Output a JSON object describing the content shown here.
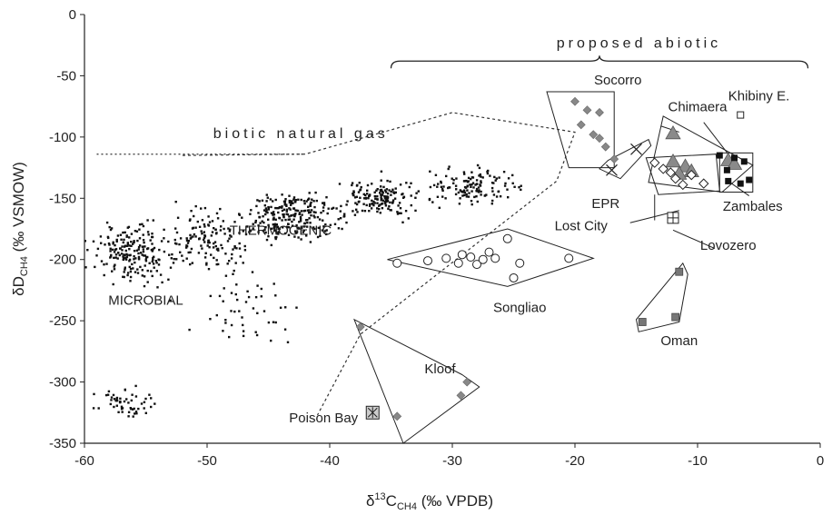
{
  "chart_data": {
    "type": "scatter",
    "title": "",
    "xlabel": "δ13C (‰ VPDB)",
    "ylabel": "δD (‰ VSMOW)",
    "xlabel_parts": {
      "delta": "δ",
      "mass": "13",
      "elem": "C",
      "sub": "CH4",
      "unit": "(‰ VPDB)"
    },
    "ylabel_parts": {
      "delta": "δ",
      "elem": "D",
      "sub": "CH4",
      "unit": "(‰ VSMOW)"
    },
    "xlim": [
      -60,
      0
    ],
    "ylim": [
      -350,
      0
    ],
    "xticks": [
      -60,
      -50,
      -40,
      -30,
      -20,
      -10,
      0
    ],
    "yticks": [
      0,
      -50,
      -100,
      -150,
      -200,
      -250,
      -300,
      -350
    ],
    "grid": false,
    "region_labels": [
      {
        "text": "biotic natural gas",
        "x": -49.5,
        "y": -101,
        "style": "spaced"
      },
      {
        "text": "proposed abiotic",
        "x": -21.5,
        "y": -27,
        "style": "spaced"
      },
      {
        "text": "THERMOGENIC",
        "x": -44,
        "y": -180
      },
      {
        "text": "MICROBIAL",
        "x": -55,
        "y": -237
      },
      {
        "text": "Socorro",
        "x": -16.5,
        "y": -57
      },
      {
        "text": "Chimaera",
        "x": -10,
        "y": -79
      },
      {
        "text": "Khibiny E.",
        "x": -5,
        "y": -70
      },
      {
        "text": "EPR",
        "x": -17.5,
        "y": -158
      },
      {
        "text": "Lost City",
        "x": -19.5,
        "y": -176
      },
      {
        "text": "Zambales",
        "x": -5.5,
        "y": -160
      },
      {
        "text": "Lovozero",
        "x": -7.5,
        "y": -192
      },
      {
        "text": "Songliao",
        "x": -24.5,
        "y": -243
      },
      {
        "text": "Oman",
        "x": -11.5,
        "y": -270
      },
      {
        "text": "Kloof",
        "x": -31,
        "y": -293
      },
      {
        "text": "Poison Bay",
        "x": -40.5,
        "y": -333
      }
    ],
    "series": [
      {
        "name": "Socorro",
        "marker": "diamond-gray",
        "points": [
          [
            -20,
            -71
          ],
          [
            -19,
            -78
          ],
          [
            -18,
            -80
          ],
          [
            -19.5,
            -90
          ],
          [
            -18.5,
            -98
          ],
          [
            -18,
            -101
          ],
          [
            -17.5,
            -108
          ],
          [
            -16.8,
            -118
          ]
        ]
      },
      {
        "name": "EPR",
        "marker": "x",
        "points": [
          [
            -15,
            -110
          ],
          [
            -17,
            -127
          ]
        ]
      },
      {
        "name": "Chimaera",
        "marker": "triangle-gray",
        "points": [
          [
            -12,
            -97
          ],
          [
            -12,
            -120
          ],
          [
            -11,
            -124
          ],
          [
            -10.5,
            -128
          ],
          [
            -11.5,
            -130
          ],
          [
            -7.5,
            -119
          ],
          [
            -7,
            -122
          ]
        ]
      },
      {
        "name": "Lost City",
        "marker": "diamond-open",
        "points": [
          [
            -13.5,
            -121
          ],
          [
            -12.8,
            -126
          ],
          [
            -12.2,
            -129
          ],
          [
            -11.8,
            -134
          ],
          [
            -11.2,
            -139
          ],
          [
            -10.5,
            -131
          ],
          [
            -9.5,
            -138
          ]
        ]
      },
      {
        "name": "Zambales",
        "marker": "square-black",
        "points": [
          [
            -8.2,
            -115
          ],
          [
            -7.6,
            -127
          ],
          [
            -7,
            -117
          ],
          [
            -6.2,
            -120
          ],
          [
            -7.5,
            -136
          ],
          [
            -6.5,
            -138
          ],
          [
            -5.8,
            -135
          ]
        ]
      },
      {
        "name": "Khibiny E.",
        "marker": "square-open",
        "points": [
          [
            -6.5,
            -82
          ]
        ]
      },
      {
        "name": "Lovozero",
        "marker": "square-plus",
        "points": [
          [
            -12,
            -166
          ]
        ]
      },
      {
        "name": "Oman",
        "marker": "square-gray",
        "points": [
          [
            -11.5,
            -210
          ],
          [
            -11.8,
            -247
          ],
          [
            -14.5,
            -251
          ]
        ]
      },
      {
        "name": "Songliao",
        "marker": "circle-open",
        "points": [
          [
            -34.5,
            -203
          ],
          [
            -32,
            -201
          ],
          [
            -30.5,
            -199
          ],
          [
            -29.2,
            -196
          ],
          [
            -29.5,
            -203
          ],
          [
            -28.5,
            -198
          ],
          [
            -28,
            -204
          ],
          [
            -27.5,
            -200
          ],
          [
            -27,
            -194
          ],
          [
            -26.5,
            -199
          ],
          [
            -25.5,
            -183
          ],
          [
            -25,
            -215
          ],
          [
            -24.5,
            -203
          ],
          [
            -20.5,
            -199
          ]
        ]
      },
      {
        "name": "Kloof",
        "marker": "diamond-gray",
        "points": [
          [
            -37.5,
            -255
          ],
          [
            -28.8,
            -300
          ],
          [
            -29.3,
            -311
          ],
          [
            -34.5,
            -328
          ]
        ]
      },
      {
        "name": "Poison Bay",
        "marker": "square-star",
        "points": [
          [
            -36.5,
            -325
          ]
        ]
      }
    ],
    "envelopes": [
      {
        "name": "Socorro",
        "points": [
          [
            -22.3,
            -63
          ],
          [
            -16.8,
            -63
          ],
          [
            -16.8,
            -125
          ],
          [
            -20.5,
            -125
          ]
        ]
      },
      {
        "name": "EPR",
        "points": [
          [
            -14,
            -102
          ],
          [
            -13.8,
            -107
          ],
          [
            -16.3,
            -134
          ],
          [
            -18,
            -126
          ],
          [
            -17.3,
            -119
          ]
        ]
      },
      {
        "name": "Chimaera",
        "points": [
          [
            -12.8,
            -83
          ],
          [
            -5.5,
            -123
          ],
          [
            -8,
            -145
          ],
          [
            -14,
            -137
          ]
        ]
      },
      {
        "name": "Lost City",
        "points": [
          [
            -14.2,
            -117
          ],
          [
            -8.5,
            -114
          ],
          [
            -8.2,
            -144
          ],
          [
            -13.2,
            -147
          ]
        ]
      },
      {
        "name": "Zambales",
        "points": [
          [
            -8.2,
            -113
          ],
          [
            -5.5,
            -113
          ],
          [
            -5.5,
            -145
          ],
          [
            -8.2,
            -145
          ]
        ]
      },
      {
        "name": "Songliao",
        "points": [
          [
            -35.3,
            -200
          ],
          [
            -25.5,
            -175
          ],
          [
            -18.5,
            -199
          ],
          [
            -25.5,
            -222
          ]
        ]
      },
      {
        "name": "Oman",
        "points": [
          [
            -11.2,
            -203
          ],
          [
            -10.8,
            -212
          ],
          [
            -11.5,
            -251
          ],
          [
            -14.8,
            -259
          ],
          [
            -15,
            -249
          ]
        ]
      },
      {
        "name": "Kloof",
        "points": [
          [
            -38,
            -249
          ],
          [
            -29.2,
            -294
          ],
          [
            -27.8,
            -304
          ],
          [
            -34,
            -350
          ]
        ]
      }
    ],
    "biotic_envelope": [
      [
        -52,
        -115
      ],
      [
        -42,
        -114
      ],
      [
        -30,
        -80
      ],
      [
        -20,
        -96
      ],
      [
        -21.5,
        -136
      ],
      [
        -37.5,
        -261
      ],
      [
        -41,
        -327
      ]
    ],
    "abiotic_brace": {
      "x_from": -35,
      "x_to": -1,
      "y": -38
    },
    "leaders": [
      {
        "from": [
          -11.5,
          -160
        ],
        "to": [
          -15.5,
          -170
        ]
      },
      {
        "from": [
          -13.5,
          -168
        ],
        "to": [
          -13.5,
          -147
        ]
      },
      {
        "from": [
          -12,
          -176
        ],
        "to": [
          -8.6,
          -191
        ]
      },
      {
        "from": [
          -5.8,
          -148
        ],
        "to": [
          -7.5,
          -136
        ]
      },
      {
        "from": [
          -13,
          -91
        ],
        "to": [
          -11.5,
          -96
        ]
      },
      {
        "from": [
          -9.5,
          -88
        ],
        "to": [
          -7.5,
          -114
        ]
      }
    ]
  }
}
